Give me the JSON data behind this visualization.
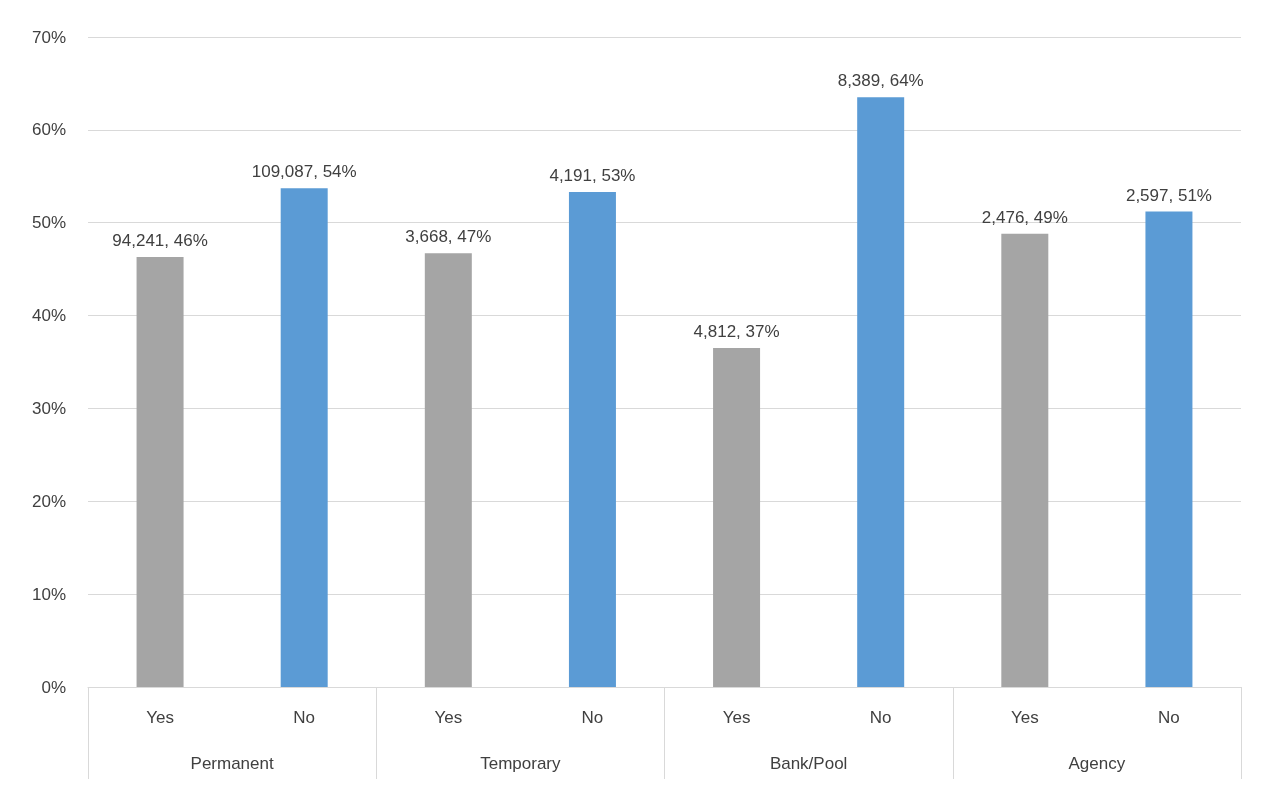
{
  "chart_data": {
    "type": "bar",
    "categories": [
      "Yes",
      "No",
      "Yes",
      "No",
      "Yes",
      "No",
      "Yes",
      "No"
    ],
    "series": [
      {
        "colors": [
          "#a5a5a5",
          "#5b9bd5",
          "#a5a5a5",
          "#5b9bd5",
          "#a5a5a5",
          "#5b9bd5",
          "#a5a5a5",
          "#5b9bd5"
        ],
        "values": [
          46.3,
          53.7,
          46.7,
          53.3,
          36.5,
          63.5,
          48.8,
          51.2
        ],
        "value_labels": [
          "94,241, 46%",
          "109,087, 54%",
          "3,668, 47%",
          "4,191, 53%",
          "4,812, 37%",
          "8,389, 64%",
          "2,476, 49%",
          "2,597, 51%"
        ]
      }
    ],
    "annotations": [
      "Permanent",
      "Temporary",
      "Bank/Pool",
      "Agency"
    ],
    "ylim": [
      0,
      70
    ],
    "yticks": [
      {
        "value": 0,
        "label": "0%"
      },
      {
        "value": 10,
        "label": "10%"
      },
      {
        "value": 20,
        "label": "20%"
      },
      {
        "value": 30,
        "label": "30%"
      },
      {
        "value": 40,
        "label": "40%"
      },
      {
        "value": 50,
        "label": "50%"
      },
      {
        "value": 60,
        "label": "60%"
      },
      {
        "value": 70,
        "label": "70%"
      }
    ],
    "grid": "y"
  }
}
